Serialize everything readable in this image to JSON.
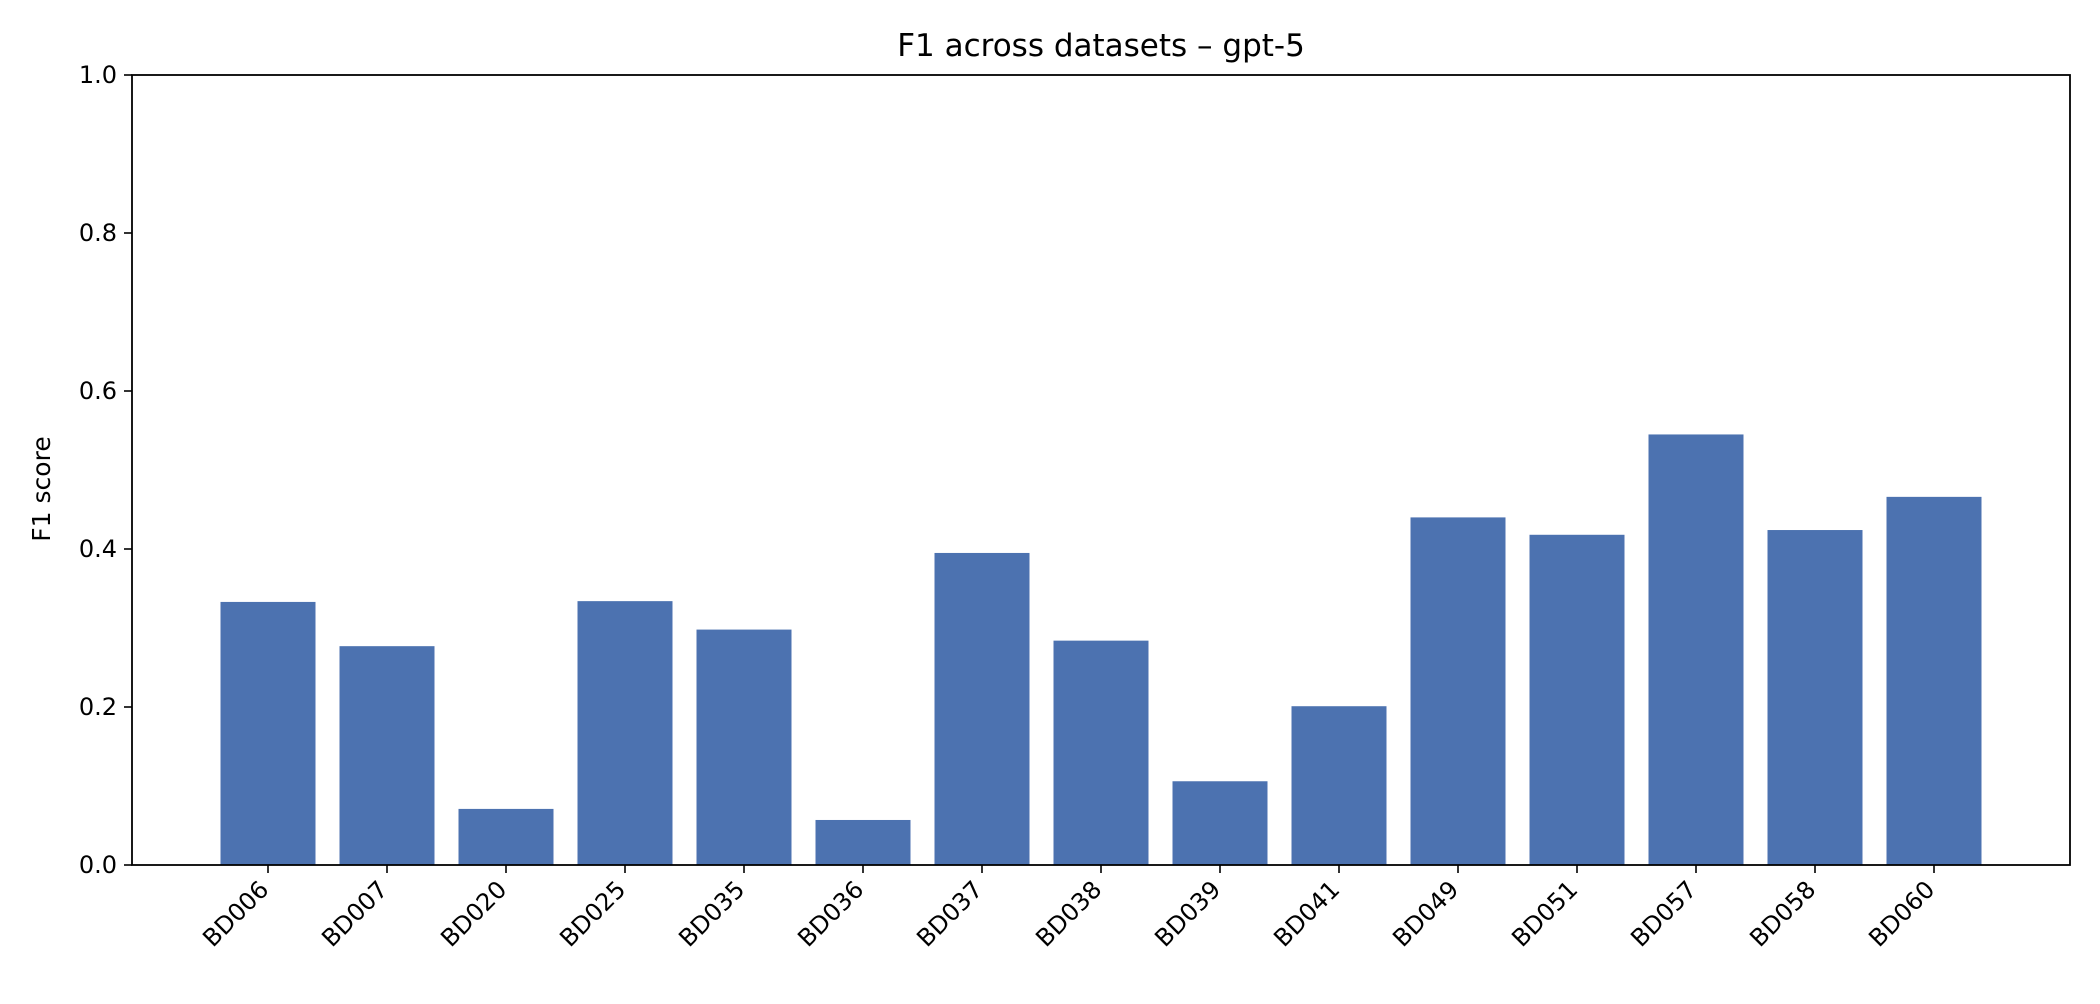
{
  "chart_data": {
    "type": "bar",
    "title": "F1 across datasets – gpt-5",
    "xlabel": "",
    "ylabel": "F1 score",
    "ylim": [
      0,
      1.0
    ],
    "yticks": [
      "0.0",
      "0.2",
      "0.4",
      "0.6",
      "0.8",
      "1.0"
    ],
    "categories": [
      "BD006",
      "BD007",
      "BD020",
      "BD025",
      "BD035",
      "BD036",
      "BD037",
      "BD038",
      "BD039",
      "BD041",
      "BD049",
      "BD051",
      "BD057",
      "BD058",
      "BD060"
    ],
    "values": [
      0.333,
      0.277,
      0.071,
      0.334,
      0.298,
      0.057,
      0.395,
      0.284,
      0.106,
      0.201,
      0.44,
      0.418,
      0.545,
      0.424,
      0.466
    ],
    "bar_color": "#4c72b0",
    "grid": false,
    "legend": "none"
  }
}
